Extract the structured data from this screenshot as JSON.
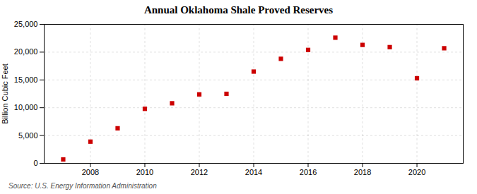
{
  "chart_data": {
    "type": "scatter",
    "title": "Annual Oklahoma Shale Proved Reserves",
    "ylabel": "Billion Cubic Feet",
    "annotations": [
      "Source: U.S. Energy Information Administration"
    ],
    "x": [
      2007,
      2008,
      2009,
      2010,
      2011,
      2012,
      2013,
      2014,
      2015,
      2016,
      2017,
      2018,
      2019,
      2020,
      2021
    ],
    "values": [
      700,
      3900,
      6300,
      9800,
      10800,
      12400,
      12500,
      16500,
      18800,
      20400,
      22600,
      21300,
      20900,
      15300,
      20700
    ],
    "color": "#cc0000",
    "marker": "square",
    "xlim": [
      2006.3,
      2021.7
    ],
    "xticks": [
      2008,
      2010,
      2012,
      2014,
      2016,
      2018,
      2020
    ],
    "ylim": [
      0,
      25000
    ],
    "yticks": [
      0,
      {
        "value": 5000,
        "label": "5,000"
      },
      {
        "value": 10000,
        "label": "10,000"
      },
      {
        "value": 15000,
        "label": "15,000"
      },
      {
        "value": 20000,
        "label": "20,000"
      },
      {
        "value": 25000,
        "label": "25,000"
      }
    ],
    "grid": true
  }
}
